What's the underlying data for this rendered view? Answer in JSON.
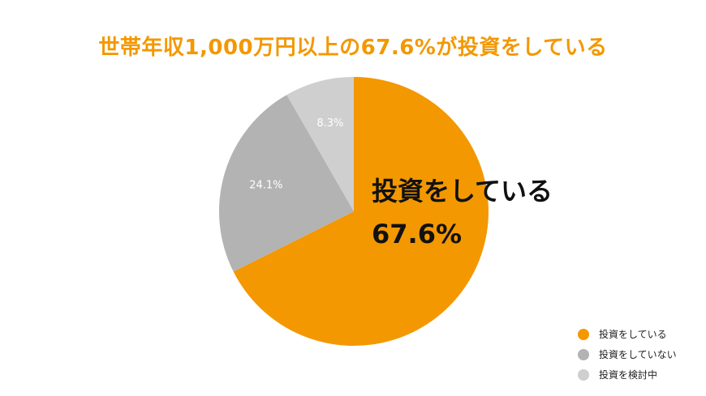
{
  "chart_data": {
    "type": "pie",
    "title": "世帯年収1,000万円以上の67.6%が投資をしている",
    "slices": [
      {
        "name": "投資をしている",
        "value": 67.6,
        "label": "",
        "color": "#f39800"
      },
      {
        "name": "投資をしていない",
        "value": 24.1,
        "label": "24.1%",
        "color": "#b3b3b3"
      },
      {
        "name": "投資を検討中",
        "value": 8.3,
        "label": "8.3%",
        "color": "#cfcfcf"
      }
    ],
    "callout": {
      "label": "投資をしている",
      "value": "67.6%"
    },
    "legend_position": "bottom-right"
  }
}
